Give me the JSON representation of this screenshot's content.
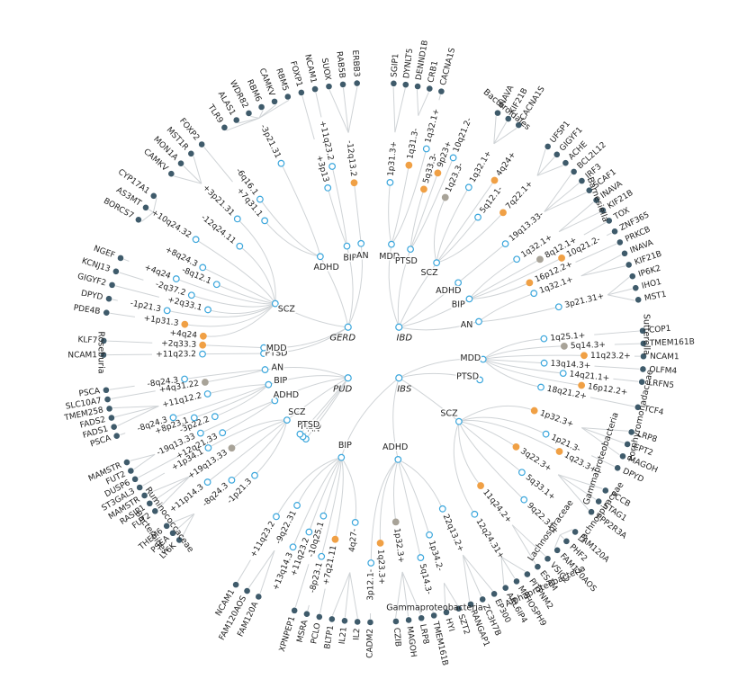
{
  "hubs": [
    {
      "label": "GERD",
      "traits": [
        {
          "label": "PTSD",
          "loci": [
            {
              "label": "+11q23.2",
              "color": "#ffffff",
              "genes": [
                "NCAM1"
              ]
            }
          ]
        },
        {
          "label": "MDD",
          "loci": [
            {
              "label": "+2q33.3",
              "color": "#f0a045",
              "genes": [
                "KLF7"
              ]
            }
          ]
        },
        {
          "label": "SCZ",
          "loci": [
            {
              "label": "+4q24",
              "color": "#f0a045",
              "genes": []
            },
            {
              "label": "+1p31.3",
              "color": "#f0a045",
              "genes": [
                "PDE4B"
              ]
            },
            {
              "label": "-1p21.3",
              "color": "#ffffff",
              "genes": [
                "DPYD"
              ]
            },
            {
              "label": "+2q33.1",
              "color": "#ffffff",
              "genes": [
                "GIGYF2"
              ]
            },
            {
              "label": "-2q37.2",
              "color": "#ffffff",
              "genes": [
                "KCNJ13"
              ]
            },
            {
              "label": "+4q24",
              "color": "#ffffff",
              "genes": [
                "NGEF"
              ]
            },
            {
              "label": "-8q12.1",
              "color": "#ffffff",
              "genes": []
            },
            {
              "label": "+8q24.3",
              "color": "#ffffff",
              "genes": []
            },
            {
              "label": "+10q24.32",
              "color": "#ffffff",
              "genes": [
                "BORCS7",
                "AS3MT",
                "CYP17A1"
              ]
            },
            {
              "label": "-12q24.11",
              "color": "#ffffff",
              "genes": []
            },
            {
              "label": "+3p21.31",
              "color": "#ffffff",
              "genes": [
                "CAMKV",
                "MON1A",
                "MST1R"
              ]
            }
          ]
        },
        {
          "label": "ADHD",
          "loci": [
            {
              "label": "+7q31.1",
              "color": "#ffffff",
              "genes": [
                "FOXP2"
              ]
            },
            {
              "label": "-6q16.1",
              "color": "#ffffff",
              "genes": []
            },
            {
              "label": "-3p21.31",
              "color": "#ffffff",
              "genes": [
                "TLR9",
                "ALAS1",
                "WDR82",
                "RBM6",
                "CAMKV",
                "RBM5"
              ]
            }
          ]
        },
        {
          "label": "BIP",
          "loci": [
            {
              "label": "+3p13",
              "color": "#ffffff",
              "genes": [
                "FOXP1"
              ]
            },
            {
              "label": "+11q23.2",
              "color": "#ffffff",
              "genes": [
                "NCAM1"
              ]
            }
          ]
        },
        {
          "label": "AN",
          "loci": [
            {
              "label": "-12q13.2",
              "color": "#f0a045",
              "genes": [
                "SUOX",
                "RAB5B",
                "ERBB3"
              ]
            }
          ]
        }
      ]
    },
    {
      "label": "IBD",
      "traits": [
        {
          "label": "MDD",
          "loci": [
            {
              "label": "1p31.3+",
              "color": "#ffffff",
              "genes": [
                "SGIP1",
                "DYNLT5"
              ]
            },
            {
              "label": "1q31.3-",
              "color": "#f0a045",
              "genes": [
                "DENND1B",
                "CRB1"
              ]
            },
            {
              "label": "1q32.1+",
              "color": "#ffffff",
              "genes": [
                "CACNA1S"
              ]
            }
          ]
        },
        {
          "label": "PTSD",
          "loci": [
            {
              "label": "5q33.3-",
              "color": "#f0a045",
              "genes": []
            },
            {
              "label": "9p23+",
              "color": "#f0a045",
              "genes": []
            },
            {
              "label": "10q21.2-",
              "color": "#ffffff",
              "genes": []
            }
          ]
        },
        {
          "label": "SCZ",
          "loci": [
            {
              "label": "1q23.3-",
              "color": "#a8a398",
              "genes": []
            },
            {
              "label": "1q32.1+",
              "color": "#ffffff",
              "genes": [
                "INAVA",
                "KIF21B",
                "CACNA1S"
              ]
            },
            {
              "label": "4q24+",
              "color": "#f0a045",
              "genes": []
            },
            {
              "label": "5q12.1-",
              "color": "#ffffff",
              "genes": []
            },
            {
              "label": "7q22.1+",
              "color": "#f0a045",
              "genes": [
                "UFSP1",
                "GIGYF1",
                "ACHE"
              ]
            }
          ]
        },
        {
          "label": "ADHD",
          "loci": [
            {
              "label": "19q13.33-",
              "color": "#ffffff",
              "genes": [
                "BCL2L12",
                "IRF3",
                "SCAF1"
              ]
            }
          ]
        },
        {
          "label": "BIP",
          "loci": [
            {
              "label": "1q32.1+",
              "color": "#ffffff",
              "genes": [
                "INAVA",
                "KIF21B"
              ]
            },
            {
              "label": "8q12.1+",
              "color": "#a8a398",
              "genes": [
                "TOX"
              ]
            },
            {
              "label": "10q21.2-",
              "color": "#f0a045",
              "genes": [
                "ZNF365"
              ]
            },
            {
              "label": "16p12.2+",
              "color": "#f0a045",
              "genes": [
                "PRKCB"
              ]
            }
          ]
        },
        {
          "label": "AN",
          "loci": [
            {
              "label": "1q32.1+",
              "color": "#ffffff",
              "genes": [
                "INAVA",
                "KIF21B"
              ]
            },
            {
              "label": "3p21.31+",
              "color": "#ffffff",
              "genes": [
                "IP6K2",
                "IHO1",
                "MST1"
              ]
            }
          ]
        }
      ]
    },
    {
      "label": "IBS",
      "traits": [
        {
          "label": "MDD",
          "loci": [
            {
              "label": "1q25.1+",
              "color": "#ffffff",
              "genes": [
                "COP1"
              ]
            },
            {
              "label": "5q14.3+",
              "color": "#a8a398",
              "genes": [
                "TMEM161B"
              ]
            },
            {
              "label": "11q23.2+",
              "color": "#f0a045",
              "genes": [
                "NCAM1"
              ]
            },
            {
              "label": "13q14.3+",
              "color": "#ffffff",
              "genes": [
                "OLFM4"
              ]
            },
            {
              "label": "14q21.1+",
              "color": "#ffffff",
              "genes": [
                "LRFN5"
              ]
            },
            {
              "label": "16p12.2+",
              "color": "#f0a045",
              "genes": []
            },
            {
              "label": "18q21.2+",
              "color": "#ffffff",
              "genes": [
                "TCF4"
              ]
            }
          ]
        },
        {
          "label": "PTSD",
          "loci": []
        },
        {
          "label": "SCZ",
          "loci": [
            {
              "label": "1p32.3+",
              "color": "#f0a045",
              "genes": [
                "LRP8",
                "CPT2",
                "MAGOH"
              ]
            },
            {
              "label": "1p21.3-",
              "color": "#ffffff",
              "genes": [
                "DPYD"
              ]
            },
            {
              "label": "1q23.3+",
              "color": "#f0a045",
              "genes": []
            },
            {
              "label": "3q22.3+",
              "color": "#f0a045",
              "genes": [
                "PCCB",
                "STAG1",
                "PPP2R3A"
              ]
            },
            {
              "label": "5q33.1+",
              "color": "#ffffff",
              "genes": []
            },
            {
              "label": "9q22.31+",
              "color": "#ffffff",
              "genes": [
                "FAM120A",
                "PHF2",
                "FAM120AOS"
              ]
            },
            {
              "label": "11q24.2+",
              "color": "#f0a045",
              "genes": [
                "VSIG2",
                "ESAM"
              ]
            },
            {
              "label": "12q24.31+",
              "color": "#ffffff",
              "genes": [
                "PITPNM2",
                "MPHOSPH9",
                "ARL6IP4"
              ]
            }
          ]
        },
        {
          "label": "ADHD",
          "loci": [
            {
              "label": "22q13.2+",
              "color": "#ffffff",
              "genes": [
                "EP300",
                "ZC3H7B",
                "RANGAP1"
              ]
            },
            {
              "label": "1p34.2-",
              "color": "#ffffff",
              "genes": [
                "SZT2",
                "HYI"
              ]
            },
            {
              "label": "5q14.3-",
              "color": "#ffffff",
              "genes": [
                "TMEM161B"
              ]
            },
            {
              "label": "1p32.3+",
              "color": "#a8a398",
              "genes": [
                "LRP8",
                "MAGOH",
                "CZIB"
              ]
            },
            {
              "label": "1q23.3+",
              "color": "#f0a045",
              "genes": []
            },
            {
              "label": "3p12.1-",
              "color": "#ffffff",
              "genes": [
                "CADM2"
              ]
            }
          ]
        },
        {
          "label": "BIP",
          "loci": [
            {
              "label": "4q27-",
              "color": "#ffffff",
              "genes": [
                "IL2",
                "IL21",
                "BLTP1"
              ]
            },
            {
              "label": "+7q21.11",
              "color": "#f0a045",
              "genes": [
                "PCLO"
              ]
            },
            {
              "label": "-8p23.1",
              "color": "#ffffff",
              "genes": [
                "MSRA"
              ]
            },
            {
              "label": "-10q25.1",
              "color": "#ffffff",
              "genes": [
                "XPNPEP1"
              ]
            },
            {
              "label": "+11q23.2",
              "color": "#ffffff",
              "genes": []
            },
            {
              "label": "+13q14.3",
              "color": "#ffffff",
              "genes": []
            },
            {
              "label": "-9q22.31",
              "color": "#ffffff",
              "genes": [
                "FAM120A",
                "FAM120AOS"
              ]
            },
            {
              "label": "+11q23.2",
              "color": "#ffffff",
              "genes": [
                "NCAM1"
              ]
            }
          ]
        }
      ]
    },
    {
      "label": "PUD",
      "traits": [
        {
          "label": "AN",
          "loci": []
        },
        {
          "label": "MDD",
          "loci": []
        },
        {
          "label": "PTSD",
          "loci": []
        },
        {
          "label": "SCZ",
          "loci": [
            {
              "label": "-1p21.3",
              "color": "#ffffff",
              "genes": []
            },
            {
              "label": "-8q24.3",
              "color": "#ffffff",
              "genes": [
                "LY6K",
                "PSCA",
                "THEM6"
              ]
            },
            {
              "label": "+11p14.3",
              "color": "#ffffff",
              "genes": []
            },
            {
              "label": "+19q13.33",
              "color": "#a8a398",
              "genes": [
                "FUT2",
                "RASIP1",
                "MAMSTR"
              ]
            },
            {
              "label": "+1p34.1",
              "color": "#ffffff",
              "genes": [
                "ST3GAL3"
              ]
            }
          ]
        },
        {
          "label": "ADHD",
          "loci": [
            {
              "label": "+12q21.33",
              "color": "#ffffff",
              "genes": [
                "DUSP6"
              ]
            },
            {
              "label": "-19q13.33",
              "color": "#ffffff",
              "genes": [
                "FUT2",
                "MAMSTR"
              ]
            }
          ]
        },
        {
          "label": "BIP",
          "loci": [
            {
              "label": "-3p22.2",
              "color": "#ffffff",
              "genes": []
            },
            {
              "label": "+8p23.1",
              "color": "#ffffff",
              "genes": []
            },
            {
              "label": "-8q24.3",
              "color": "#ffffff",
              "genes": [
                "PSCA"
              ]
            },
            {
              "label": "+11q12.2",
              "color": "#ffffff",
              "genes": [
                "FADS1",
                "FADS2",
                "TMEM258"
              ]
            }
          ]
        },
        {
          "label": "AN",
          "loci": [
            {
              "label": "+4q31.22",
              "color": "#a8a398",
              "genes": [
                "SLC10A7"
              ]
            },
            {
              "label": "-8q24.3",
              "color": "#ffffff",
              "genes": [
                "PSCA"
              ]
            }
          ]
        }
      ]
    }
  ],
  "taxa": [
    "Bacteroidales",
    "Barnesiella",
    "Sutterella",
    "Porphyromonadaceae",
    "Gammaproteobacteria",
    "Lachnospiraceae",
    "Lachnospiraceae",
    "Alphaproteobacteria",
    "Gammaproteobacteria",
    "Roseburia",
    "Ruminococcaceae",
    "Bacteroides"
  ]
}
